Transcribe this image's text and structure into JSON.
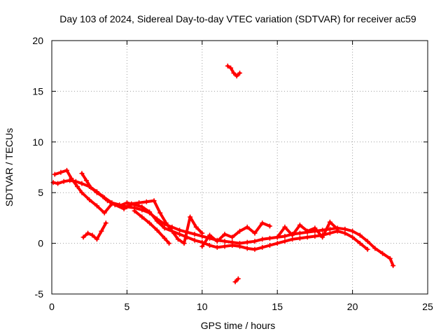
{
  "chart_data": {
    "type": "scatter",
    "title": "Day 103 of 2024, Sidereal Day-to-day VTEC variation (SDTVAR) for receiver ac59",
    "xlabel": "GPS time / hours",
    "ylabel": "SDTVAR / TECUs",
    "xlim": [
      0,
      25
    ],
    "ylim": [
      -5,
      20
    ],
    "x_ticks": [
      0,
      5,
      10,
      15,
      20,
      25
    ],
    "y_ticks": [
      -5,
      0,
      5,
      10,
      15,
      20
    ],
    "x_tick_labels": [
      "0",
      "5",
      "10",
      "15",
      "20",
      "25"
    ],
    "y_tick_labels": [
      "-5",
      "0",
      "5",
      "10",
      "15",
      "20"
    ],
    "grid": true,
    "marker": "plus",
    "series": [
      {
        "name": "track-a",
        "color": "#ff0000",
        "points": [
          [
            0.1,
            6.0
          ],
          [
            0.4,
            5.9
          ],
          [
            0.8,
            6.1
          ],
          [
            1.2,
            6.2
          ],
          [
            1.6,
            6.1
          ],
          [
            2.0,
            5.9
          ],
          [
            2.5,
            5.6
          ],
          [
            3.0,
            5.1
          ],
          [
            3.5,
            4.5
          ],
          [
            4.0,
            4.0
          ],
          [
            4.5,
            3.8
          ],
          [
            5.0,
            3.6
          ],
          [
            5.5,
            3.5
          ],
          [
            6.0,
            3.3
          ],
          [
            6.5,
            3.0
          ],
          [
            7.0,
            2.4
          ],
          [
            7.5,
            1.9
          ],
          [
            8.0,
            1.6
          ],
          [
            8.5,
            1.3
          ],
          [
            9.0,
            1.1
          ],
          [
            9.5,
            0.9
          ],
          [
            10.0,
            0.7
          ],
          [
            10.5,
            0.5
          ],
          [
            11.0,
            0.3
          ],
          [
            11.5,
            0.2
          ],
          [
            12.0,
            0.1
          ],
          [
            12.5,
            0.0
          ],
          [
            13.0,
            0.1
          ],
          [
            13.5,
            0.2
          ],
          [
            14.0,
            0.4
          ],
          [
            14.5,
            0.5
          ],
          [
            15.0,
            0.6
          ],
          [
            15.5,
            0.7
          ],
          [
            16.0,
            0.9
          ],
          [
            16.5,
            1.0
          ],
          [
            17.0,
            1.1
          ],
          [
            17.5,
            1.2
          ],
          [
            18.0,
            1.3
          ],
          [
            18.5,
            1.4
          ],
          [
            19.0,
            1.5
          ],
          [
            19.5,
            1.4
          ],
          [
            20.0,
            1.2
          ],
          [
            20.5,
            0.8
          ],
          [
            21.0,
            0.2
          ],
          [
            21.5,
            -0.5
          ],
          [
            22.0,
            -1.0
          ],
          [
            22.5,
            -1.5
          ],
          [
            22.7,
            -2.2
          ]
        ]
      },
      {
        "name": "track-b",
        "color": "#ff0000",
        "points": [
          [
            0.2,
            6.8
          ],
          [
            0.6,
            7.0
          ],
          [
            1.0,
            7.2
          ],
          [
            1.3,
            6.4
          ],
          [
            1.7,
            5.6
          ],
          [
            2.0,
            5.0
          ],
          [
            2.5,
            4.3
          ],
          [
            3.0,
            3.7
          ],
          [
            3.5,
            3.0
          ],
          [
            4.0,
            3.9
          ],
          [
            4.5,
            3.7
          ],
          [
            5.0,
            4.0
          ],
          [
            5.5,
            3.8
          ],
          [
            6.0,
            3.6
          ],
          [
            6.5,
            3.1
          ],
          [
            7.0,
            2.2
          ],
          [
            7.5,
            1.5
          ],
          [
            8.0,
            1.2
          ],
          [
            8.5,
            0.9
          ],
          [
            9.0,
            0.6
          ],
          [
            9.5,
            0.3
          ],
          [
            10.0,
            0.1
          ],
          [
            10.5,
            -0.2
          ],
          [
            11.0,
            -0.4
          ],
          [
            11.5,
            -0.3
          ],
          [
            12.0,
            -0.2
          ],
          [
            12.5,
            -0.3
          ],
          [
            13.0,
            -0.5
          ],
          [
            13.5,
            -0.6
          ],
          [
            14.0,
            -0.4
          ],
          [
            14.5,
            -0.2
          ],
          [
            15.0,
            0.0
          ],
          [
            15.5,
            0.2
          ],
          [
            16.0,
            0.4
          ],
          [
            16.5,
            0.5
          ],
          [
            17.0,
            0.6
          ],
          [
            17.5,
            0.7
          ],
          [
            18.0,
            0.8
          ],
          [
            18.5,
            1.0
          ],
          [
            19.0,
            1.2
          ],
          [
            19.5,
            1.0
          ],
          [
            20.0,
            0.6
          ],
          [
            20.5,
            0.0
          ],
          [
            21.0,
            -0.6
          ]
        ]
      },
      {
        "name": "track-c",
        "color": "#ff0000",
        "points": [
          [
            2.0,
            6.9
          ],
          [
            2.3,
            6.2
          ],
          [
            2.6,
            5.5
          ],
          [
            3.0,
            5.0
          ],
          [
            3.4,
            4.6
          ],
          [
            3.7,
            4.2
          ],
          [
            4.2,
            3.8
          ],
          [
            4.8,
            3.4
          ],
          [
            5.3,
            3.9
          ],
          [
            5.8,
            4.0
          ],
          [
            6.3,
            4.1
          ],
          [
            6.8,
            4.2
          ],
          [
            7.2,
            3.0
          ],
          [
            7.6,
            2.0
          ],
          [
            8.0,
            1.2
          ],
          [
            8.4,
            0.4
          ],
          [
            8.8,
            0.0
          ],
          [
            9.2,
            2.6
          ],
          [
            9.6,
            1.6
          ],
          [
            10.0,
            1.0
          ]
        ]
      },
      {
        "name": "track-d",
        "color": "#ff0000",
        "points": [
          [
            2.1,
            0.6
          ],
          [
            2.4,
            1.0
          ],
          [
            2.7,
            0.8
          ],
          [
            3.0,
            0.4
          ],
          [
            3.3,
            1.2
          ],
          [
            3.6,
            2.0
          ]
        ]
      },
      {
        "name": "track-e",
        "color": "#ff0000",
        "points": [
          [
            5.5,
            3.2
          ],
          [
            6.0,
            2.6
          ],
          [
            6.5,
            2.0
          ],
          [
            7.0,
            1.3
          ],
          [
            7.5,
            0.5
          ],
          [
            7.8,
            0.0
          ]
        ]
      },
      {
        "name": "track-f",
        "color": "#ff0000",
        "points": [
          [
            10.0,
            -0.3
          ],
          [
            10.5,
            0.8
          ],
          [
            11.0,
            0.2
          ],
          [
            11.5,
            0.9
          ],
          [
            12.0,
            0.6
          ],
          [
            12.5,
            1.2
          ],
          [
            13.0,
            1.6
          ],
          [
            13.5,
            1.0
          ],
          [
            14.0,
            2.0
          ],
          [
            14.5,
            1.7
          ]
        ]
      },
      {
        "name": "track-g",
        "color": "#ff0000",
        "points": [
          [
            15.0,
            0.6
          ],
          [
            15.5,
            1.6
          ],
          [
            16.0,
            0.8
          ],
          [
            16.5,
            1.8
          ],
          [
            17.0,
            1.2
          ],
          [
            17.5,
            1.5
          ],
          [
            18.0,
            0.6
          ],
          [
            18.5,
            2.1
          ],
          [
            19.0,
            1.4
          ]
        ]
      },
      {
        "name": "track-h",
        "color": "#ff0000",
        "points": [
          [
            11.7,
            17.5
          ],
          [
            11.9,
            17.3
          ],
          [
            12.1,
            16.8
          ],
          [
            12.3,
            16.5
          ],
          [
            12.5,
            16.8
          ]
        ]
      },
      {
        "name": "track-i",
        "color": "#ff0000",
        "points": [
          [
            12.2,
            -3.8
          ],
          [
            12.4,
            -3.5
          ]
        ]
      }
    ]
  }
}
